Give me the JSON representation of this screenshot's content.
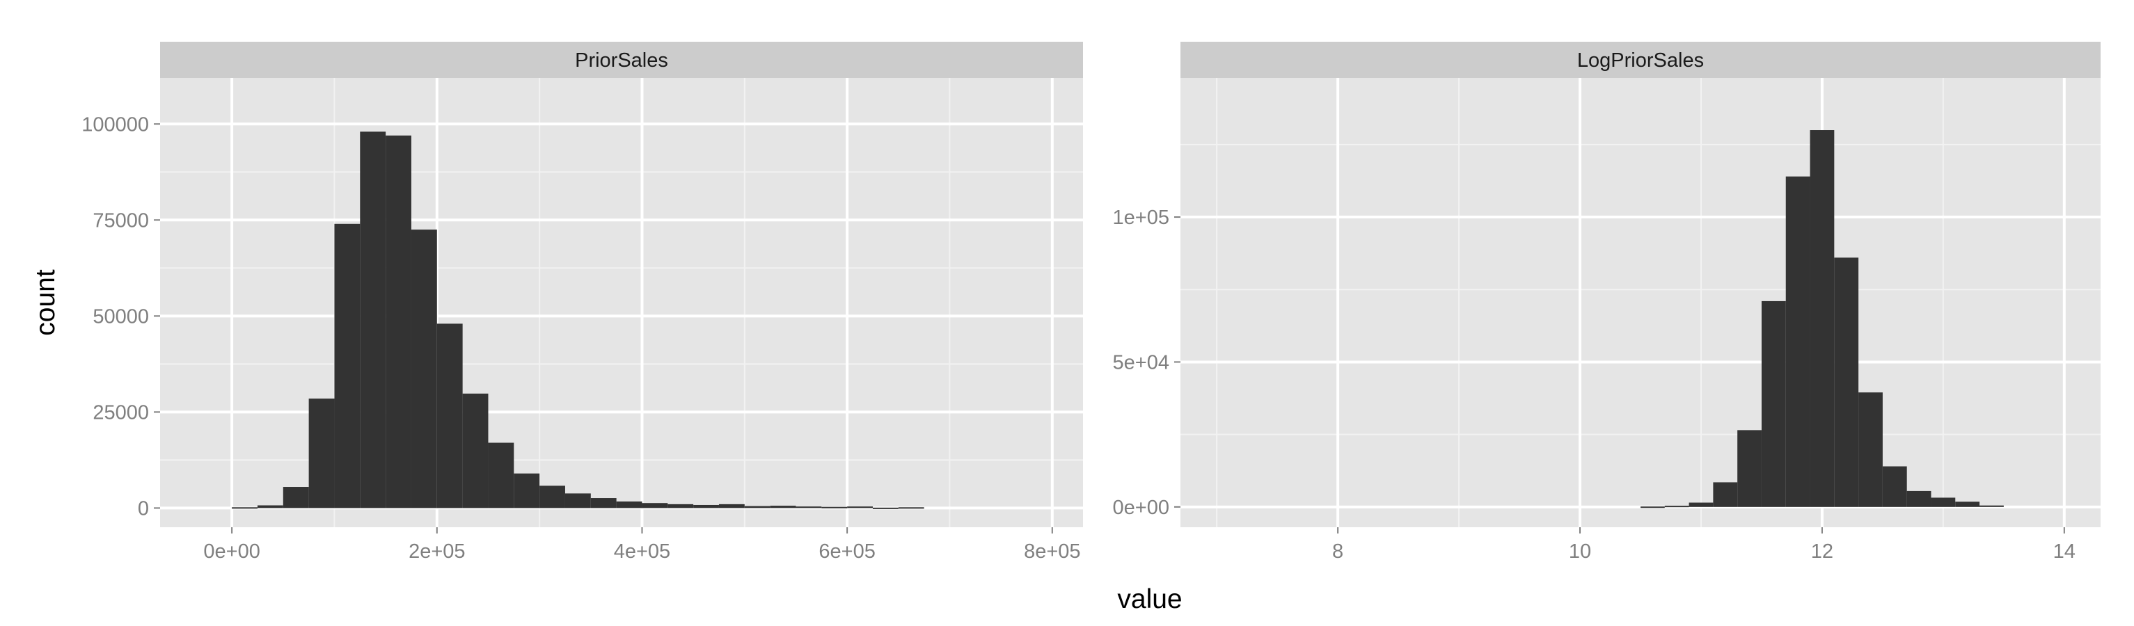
{
  "chart_data": {
    "type": "bar",
    "layout": "faceted histograms, 2 panels side by side, independent scales",
    "xlabel": "value",
    "ylabel": "count",
    "grid": true,
    "colors": {
      "panel_bg": "#e5e5e5",
      "strip_bg": "#cccccc",
      "grid_major": "#ffffff",
      "grid_minor": "#f2f2f2",
      "bar": "#333333",
      "tick_text": "#7f7f7f",
      "strip_text": "#1a1a1a"
    },
    "panels": [
      {
        "title": "PriorSales",
        "xlim": [
          -70000,
          830000
        ],
        "ylim": [
          -5000,
          112000
        ],
        "x_ticks": [
          {
            "value": 0,
            "label": "0e+00"
          },
          {
            "value": 200000,
            "label": "2e+05"
          },
          {
            "value": 400000,
            "label": "4e+05"
          },
          {
            "value": 600000,
            "label": "6e+05"
          },
          {
            "value": 800000,
            "label": "8e+05"
          }
        ],
        "y_ticks": [
          {
            "value": 0,
            "label": "0"
          },
          {
            "value": 25000,
            "label": "25000"
          },
          {
            "value": 50000,
            "label": "50000"
          },
          {
            "value": 75000,
            "label": "75000"
          },
          {
            "value": 100000,
            "label": "100000"
          }
        ],
        "bins": [
          {
            "x0": 0,
            "x1": 25000,
            "count": 200
          },
          {
            "x0": 25000,
            "x1": 50000,
            "count": 700
          },
          {
            "x0": 50000,
            "x1": 75000,
            "count": 5500
          },
          {
            "x0": 75000,
            "x1": 100000,
            "count": 28500
          },
          {
            "x0": 100000,
            "x1": 125000,
            "count": 74000
          },
          {
            "x0": 125000,
            "x1": 150000,
            "count": 98000
          },
          {
            "x0": 150000,
            "x1": 175000,
            "count": 97000
          },
          {
            "x0": 175000,
            "x1": 200000,
            "count": 72500
          },
          {
            "x0": 200000,
            "x1": 225000,
            "count": 48000
          },
          {
            "x0": 225000,
            "x1": 250000,
            "count": 29800
          },
          {
            "x0": 250000,
            "x1": 275000,
            "count": 17000
          },
          {
            "x0": 275000,
            "x1": 300000,
            "count": 9000
          },
          {
            "x0": 300000,
            "x1": 325000,
            "count": 5800
          },
          {
            "x0": 325000,
            "x1": 350000,
            "count": 3800
          },
          {
            "x0": 350000,
            "x1": 375000,
            "count": 2600
          },
          {
            "x0": 375000,
            "x1": 400000,
            "count": 1700
          },
          {
            "x0": 400000,
            "x1": 425000,
            "count": 1300
          },
          {
            "x0": 425000,
            "x1": 450000,
            "count": 1000
          },
          {
            "x0": 450000,
            "x1": 475000,
            "count": 800
          },
          {
            "x0": 475000,
            "x1": 500000,
            "count": 1000
          },
          {
            "x0": 500000,
            "x1": 525000,
            "count": 500
          },
          {
            "x0": 525000,
            "x1": 550000,
            "count": 600
          },
          {
            "x0": 550000,
            "x1": 575000,
            "count": 400
          },
          {
            "x0": 575000,
            "x1": 600000,
            "count": 300
          },
          {
            "x0": 600000,
            "x1": 625000,
            "count": 400
          },
          {
            "x0": 625000,
            "x1": 650000,
            "count": 100
          },
          {
            "x0": 650000,
            "x1": 675000,
            "count": 200
          }
        ]
      },
      {
        "title": "LogPriorSales",
        "xlim": [
          6.7,
          14.3
        ],
        "ylim": [
          -7000,
          148000
        ],
        "x_ticks": [
          {
            "value": 8,
            "label": "8"
          },
          {
            "value": 10,
            "label": "10"
          },
          {
            "value": 12,
            "label": "12"
          },
          {
            "value": 14,
            "label": "14"
          }
        ],
        "y_ticks": [
          {
            "value": 0,
            "label": "0e+00"
          },
          {
            "value": 50000,
            "label": "5e+04"
          },
          {
            "value": 100000,
            "label": "1e+05"
          }
        ],
        "bins": [
          {
            "x0": 10.5,
            "x1": 10.7,
            "count": 150
          },
          {
            "x0": 10.7,
            "x1": 10.9,
            "count": 400
          },
          {
            "x0": 10.9,
            "x1": 11.1,
            "count": 1500
          },
          {
            "x0": 11.1,
            "x1": 11.3,
            "count": 8500
          },
          {
            "x0": 11.3,
            "x1": 11.5,
            "count": 26500
          },
          {
            "x0": 11.5,
            "x1": 11.7,
            "count": 71000
          },
          {
            "x0": 11.7,
            "x1": 11.9,
            "count": 114000
          },
          {
            "x0": 11.9,
            "x1": 12.1,
            "count": 130000
          },
          {
            "x0": 12.1,
            "x1": 12.3,
            "count": 86000
          },
          {
            "x0": 12.3,
            "x1": 12.5,
            "count": 39500
          },
          {
            "x0": 12.5,
            "x1": 12.7,
            "count": 14000
          },
          {
            "x0": 12.7,
            "x1": 12.9,
            "count": 5500
          },
          {
            "x0": 12.9,
            "x1": 13.1,
            "count": 3200
          },
          {
            "x0": 13.1,
            "x1": 13.3,
            "count": 1800
          },
          {
            "x0": 13.3,
            "x1": 13.5,
            "count": 500
          }
        ]
      }
    ]
  }
}
